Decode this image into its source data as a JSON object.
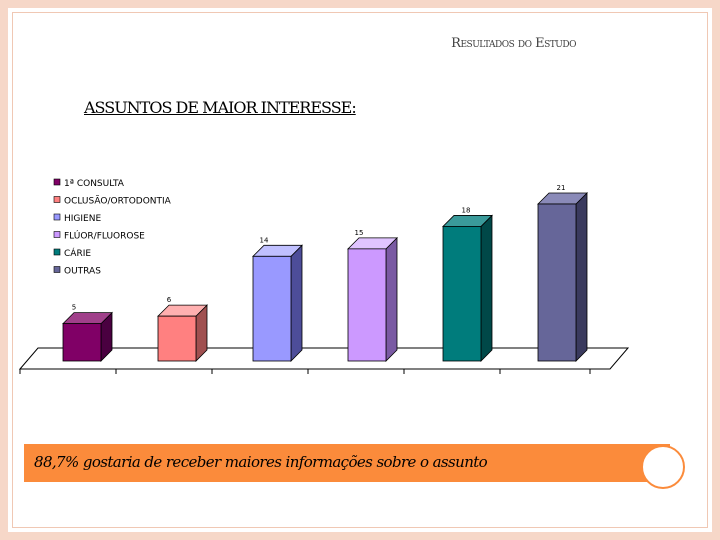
{
  "slide": {
    "header_title": "Resultados do Estudo",
    "section_heading": "ASSUNTOS DE MAIOR INTERESSE:",
    "banner_text": "88,7% gostaria de receber maiores informações sobre o assunto"
  },
  "chart_data": {
    "type": "bar",
    "style": "3d",
    "categories": [
      "1ª CONSULTA",
      "OCLUSÃO/ORTODONTIA",
      "HIGIENE",
      "FLÚOR/FLUOROSE",
      "CÁRIE",
      "OUTRAS"
    ],
    "values": [
      5,
      6,
      14,
      15,
      18,
      21
    ],
    "data_labels": [
      "5",
      "6",
      "14",
      "15",
      "18",
      "21"
    ],
    "colors": [
      "#800066",
      "#ff8080",
      "#9999ff",
      "#cc99ff",
      "#007c7c",
      "#666699"
    ],
    "side_colors": [
      "#4a0040",
      "#a05050",
      "#4d4d99",
      "#7a5aa3",
      "#004848",
      "#3a3a5e"
    ],
    "top_colors": [
      "#a0408a",
      "#ffb0b0",
      "#c0c0ff",
      "#e0c4ff",
      "#3a9a9a",
      "#8a8ab8"
    ],
    "legend": {
      "position": "top-left",
      "entries": [
        "1ª CONSULTA",
        "OCLUSÃO/ORTODONTIA",
        "HIGIENE",
        "FLÚOR/FLUOROSE",
        "CÁRIE",
        "OUTRAS"
      ]
    },
    "ylim": [
      0,
      21
    ],
    "grid": false,
    "title": "",
    "xlabel": "",
    "ylabel": ""
  }
}
